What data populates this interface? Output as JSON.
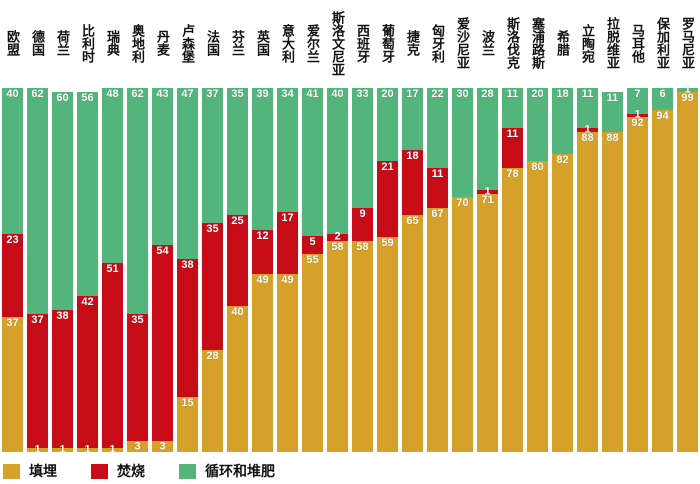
{
  "chart_data": {
    "type": "bar",
    "stacked": true,
    "unit": "percent",
    "orientation": "vertical",
    "ylim": [
      0,
      100
    ],
    "grid": false,
    "legend_position": "bottom-left",
    "stack_order_top_to_bottom": [
      "recycling_composting",
      "incineration",
      "landfill"
    ],
    "categories": [
      "欧盟",
      "德国",
      "荷兰",
      "比利时",
      "瑞典",
      "奥地利",
      "丹麦",
      "卢森堡",
      "法国",
      "芬兰",
      "英国",
      "意大利",
      "爱尔兰",
      "斯洛文尼亚",
      "西班牙",
      "葡萄牙",
      "捷克",
      "匈牙利",
      "爱沙尼亚",
      "波兰",
      "斯洛伐克",
      "塞浦路斯",
      "希腊",
      "立陶宛",
      "拉脱维亚",
      "马耳他",
      "保加利亚",
      "罗马尼亚"
    ],
    "series": [
      {
        "key": "landfill",
        "name": "填埋",
        "color": "#d5a129",
        "values": [
          37,
          1,
          1,
          1,
          1,
          3,
          3,
          15,
          28,
          40,
          49,
          49,
          55,
          58,
          58,
          59,
          65,
          67,
          70,
          71,
          78,
          80,
          82,
          88,
          88,
          92,
          94,
          99
        ]
      },
      {
        "key": "incineration",
        "name": "焚烧",
        "color": "#c60d17",
        "values": [
          23,
          37,
          38,
          42,
          51,
          35,
          54,
          38,
          35,
          25,
          12,
          17,
          5,
          2,
          9,
          21,
          18,
          11,
          0,
          1,
          11,
          0,
          0,
          1,
          0,
          1,
          0,
          0
        ]
      },
      {
        "key": "recycling_composting",
        "name": "循环和堆肥",
        "color": "#53b57c",
        "values": [
          40,
          62,
          60,
          56,
          48,
          62,
          43,
          47,
          37,
          35,
          39,
          34,
          41,
          40,
          33,
          20,
          17,
          22,
          30,
          28,
          11,
          20,
          18,
          11,
          11,
          7,
          6,
          1
        ]
      }
    ],
    "legend": [
      {
        "label": "填埋",
        "color": "#d5a129"
      },
      {
        "label": "焚烧",
        "color": "#c60d17"
      },
      {
        "label": "循环和堆肥",
        "color": "#53b57c"
      }
    ],
    "value_label_color": "#ffffff"
  }
}
